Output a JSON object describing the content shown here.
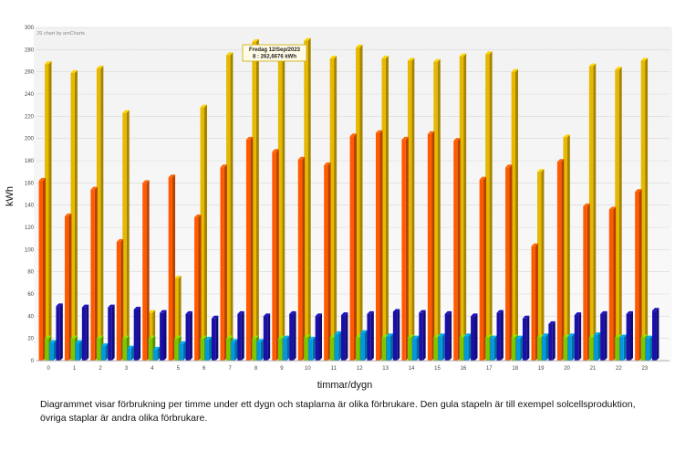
{
  "header": {
    "export_label": "JS chart by amCharts"
  },
  "chart_data": {
    "type": "bar",
    "title": "",
    "xlabel": "timmar/dygn",
    "ylabel": "kWh",
    "ylim": [
      0,
      300
    ],
    "yticks": [
      0,
      20,
      40,
      60,
      80,
      100,
      120,
      140,
      160,
      180,
      200,
      220,
      240,
      260,
      280,
      300
    ],
    "grid": true,
    "categories": [
      "0",
      "1",
      "2",
      "3",
      "4",
      "5",
      "6",
      "7",
      "8",
      "9",
      "10",
      "11",
      "12",
      "13",
      "14",
      "15",
      "16",
      "17",
      "18",
      "19",
      "20",
      "21",
      "22",
      "23"
    ],
    "series": [
      {
        "color": "#ff5a00",
        "values": [
          162,
          130,
          154,
          107,
          160,
          165,
          129,
          174,
          199,
          188,
          181,
          176,
          202,
          205,
          199,
          204,
          198,
          163,
          174,
          103,
          179,
          139,
          136,
          152
        ]
      },
      {
        "color": "#7cc800",
        "values": [
          20,
          20,
          20,
          20,
          20,
          20,
          20,
          20,
          20,
          20,
          21,
          21,
          21,
          21,
          21,
          21,
          21,
          21,
          21,
          21,
          21,
          21,
          21,
          21
        ]
      },
      {
        "color": "#0099e0",
        "values": [
          16,
          16,
          13,
          11,
          10,
          15,
          19,
          17,
          17,
          20,
          19,
          24,
          25,
          22,
          20,
          22,
          22,
          20,
          20,
          22,
          22,
          23,
          21,
          20
        ]
      },
      {
        "color": "#e6b800",
        "values": [
          267,
          259,
          263,
          223,
          43,
          74,
          228,
          275,
          287,
          281,
          288,
          272,
          282,
          272,
          270,
          269,
          274,
          276,
          260,
          170,
          201,
          265,
          262,
          270
        ]
      },
      {
        "color": "#1a0fa8",
        "values": [
          49,
          48,
          48,
          46,
          43,
          42,
          38,
          42,
          40,
          42,
          40,
          41,
          42,
          44,
          43,
          42,
          40,
          43,
          38,
          33,
          41,
          42,
          42,
          45
        ]
      }
    ],
    "tooltip": {
      "line1": "Fredag 12/Sep/2023",
      "line2": "8 : 262,6676 kWh"
    }
  },
  "caption": "Diagrammet visar förbrukning per timme under ett dygn och staplarna är olika förbrukare. Den gula stapeln är till exempel solcellsproduktion, övriga staplar är andra olika förbrukare."
}
